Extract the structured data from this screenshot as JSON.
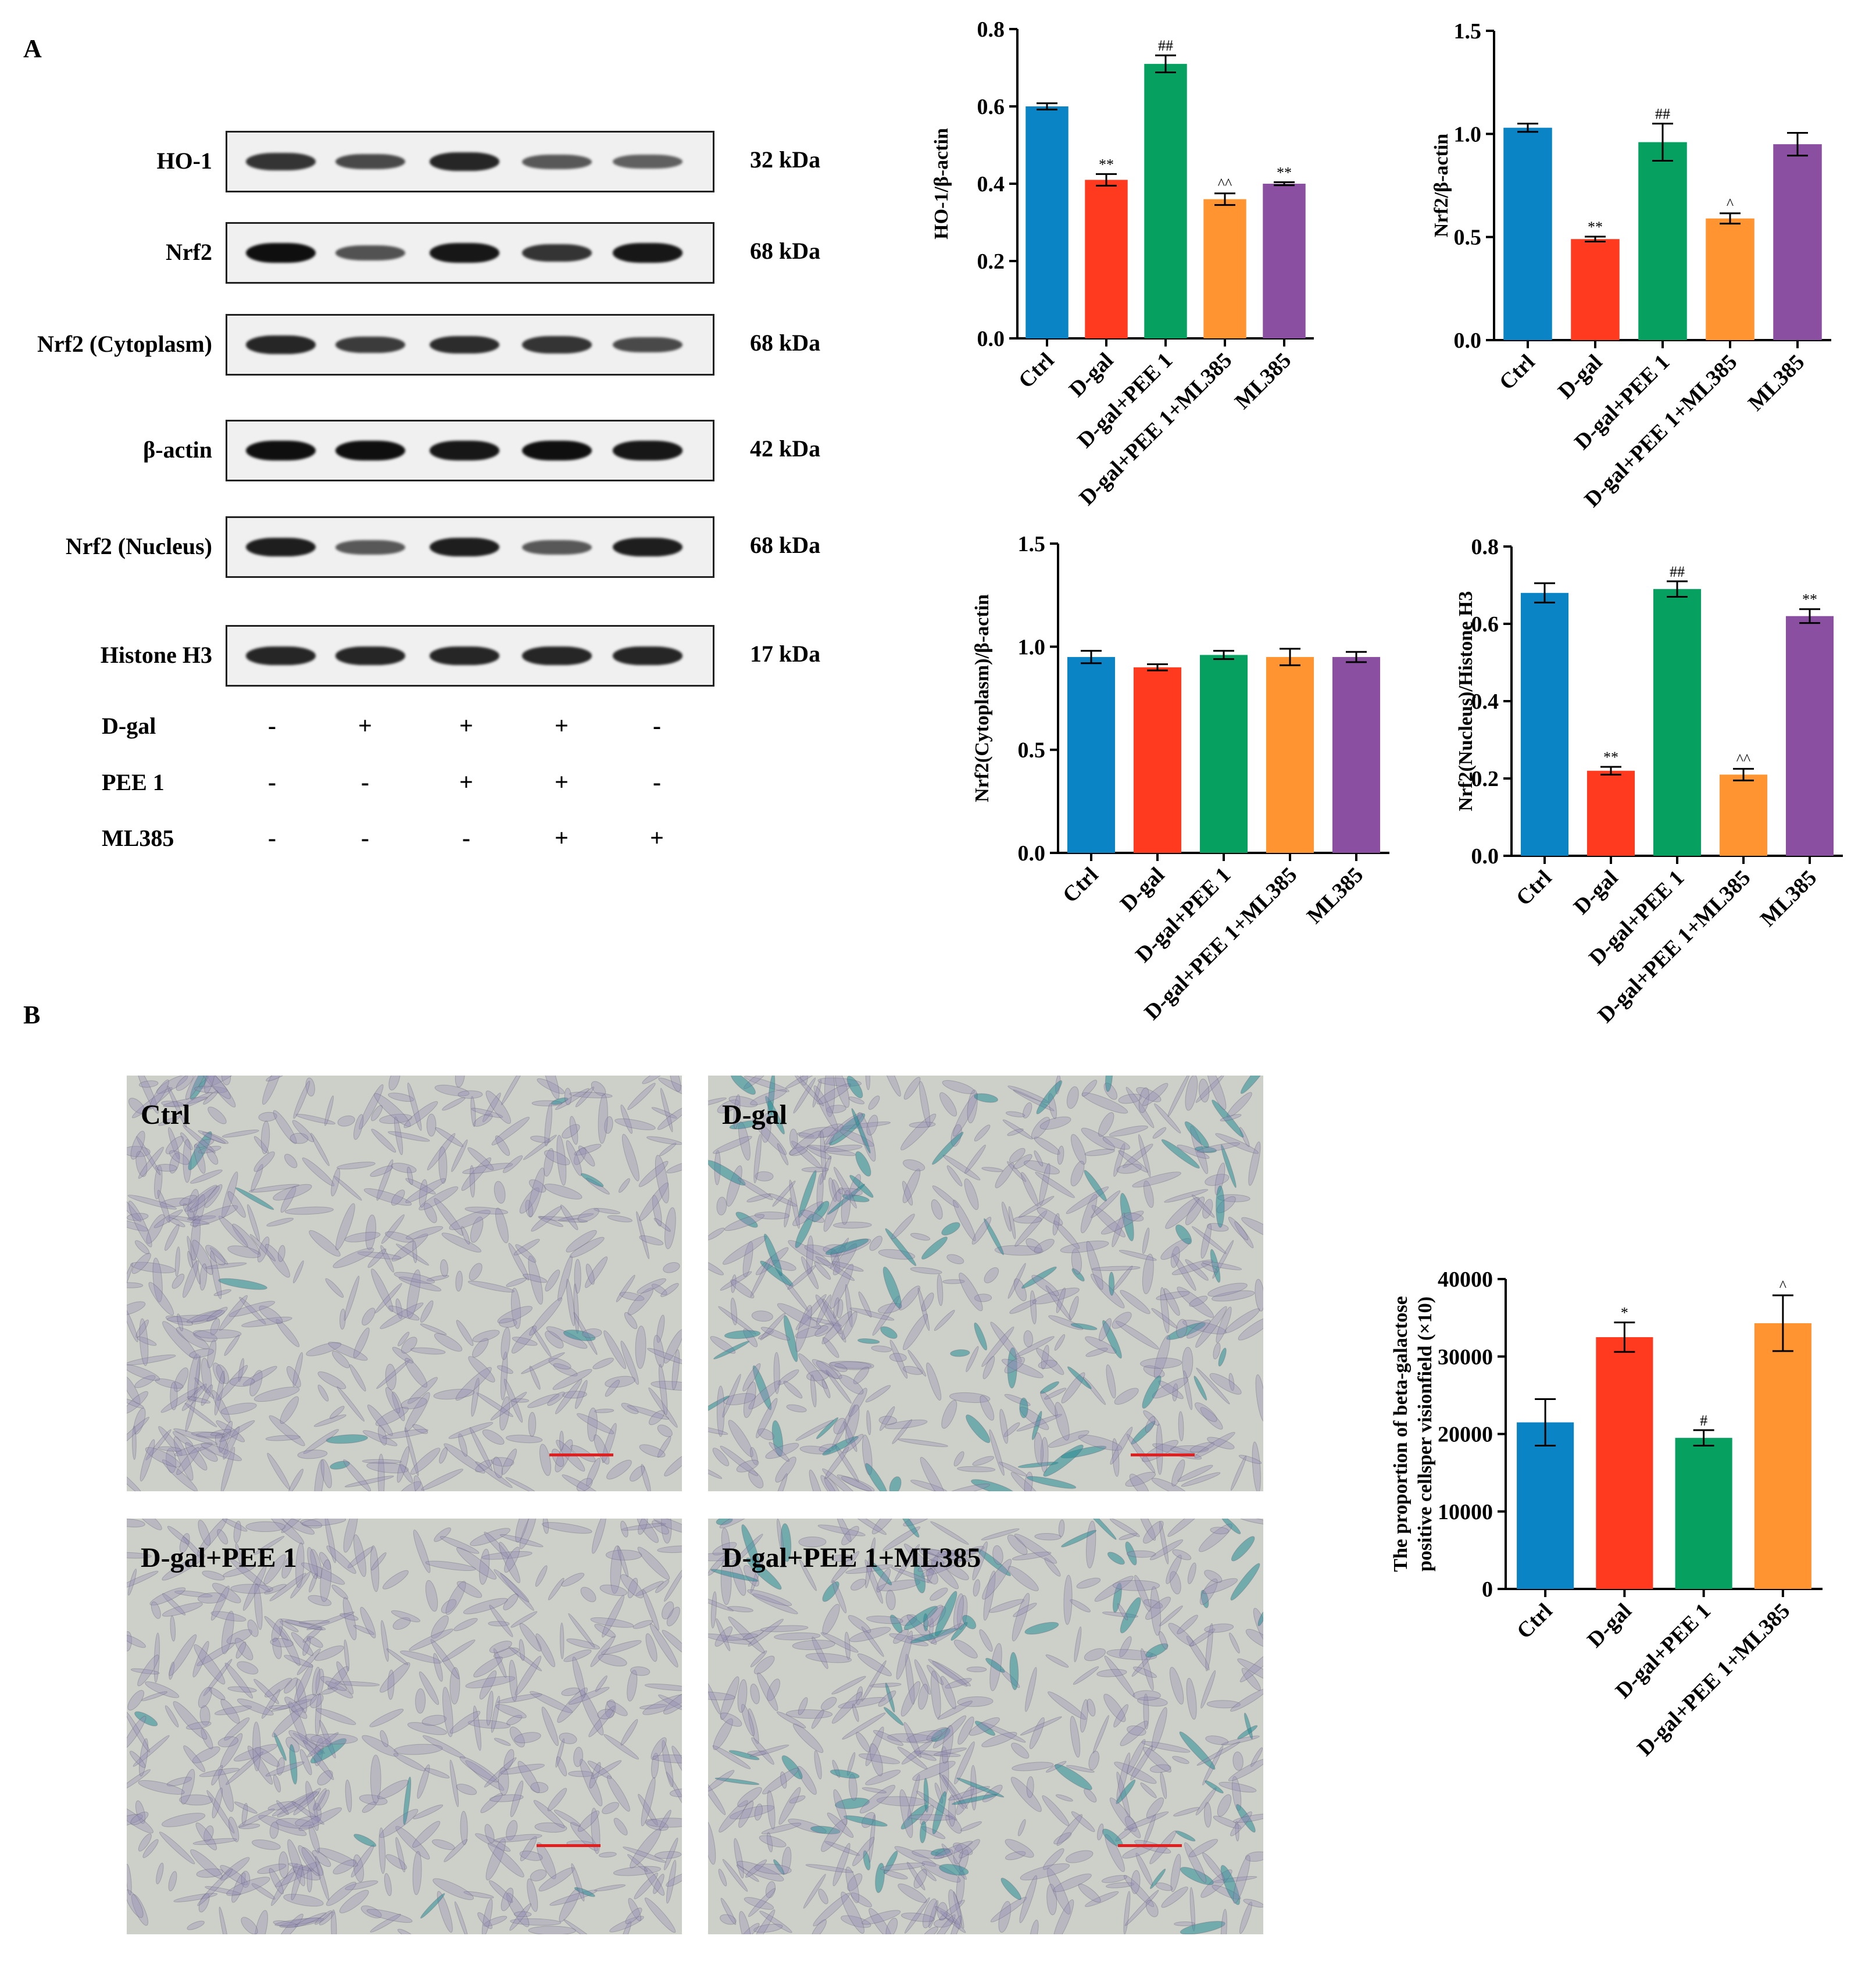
{
  "panelA": {
    "letter": "A",
    "blots": [
      {
        "label": "HO-1",
        "kda": "32 kDa",
        "intensity": [
          0.75,
          0.6,
          0.85,
          0.5,
          0.45
        ]
      },
      {
        "label": "Nrf2",
        "kda": "68 kDa",
        "intensity": [
          1.0,
          0.55,
          0.95,
          0.75,
          0.95
        ]
      },
      {
        "label": "Nrf2 (Cytoplasm)",
        "kda": "68 kDa",
        "intensity": [
          0.85,
          0.7,
          0.8,
          0.75,
          0.6
        ]
      },
      {
        "label": "β-actin",
        "kda": "42 kDa",
        "intensity": [
          1.0,
          1.0,
          0.95,
          1.0,
          0.95
        ]
      },
      {
        "label": "Nrf2 (Nucleus)",
        "kda": "68 kDa",
        "intensity": [
          0.9,
          0.5,
          0.9,
          0.5,
          0.9
        ]
      },
      {
        "label": "Histone H3",
        "kda": "17 kDa",
        "intensity": [
          0.85,
          0.85,
          0.85,
          0.85,
          0.85
        ]
      }
    ],
    "treatments": [
      {
        "label": "D-gal",
        "signs": [
          "-",
          "+",
          "+",
          "+",
          "-"
        ]
      },
      {
        "label": "PEE 1",
        "signs": [
          "-",
          "-",
          "+",
          "+",
          "-"
        ]
      },
      {
        "label": "ML385",
        "signs": [
          "-",
          "-",
          "-",
          "+",
          "+"
        ]
      }
    ]
  },
  "panelB": {
    "letter": "B",
    "images": [
      {
        "label": "Ctrl",
        "stain": 0.05
      },
      {
        "label": "D-gal",
        "stain": 0.5
      },
      {
        "label": "D-gal+PEE 1",
        "stain": 0.05
      },
      {
        "label": "D-gal+PEE 1+ML385",
        "stain": 0.55
      }
    ]
  },
  "chart_data": [
    {
      "type": "bar",
      "categories": [
        "Ctrl",
        "D-gal",
        "D-gal+PEE 1",
        "D-gal+PEE 1+ML385",
        "ML385"
      ],
      "values": [
        0.6,
        0.41,
        0.71,
        0.36,
        0.4
      ],
      "errors": [
        0.008,
        0.015,
        0.022,
        0.015,
        0.004
      ],
      "annotations": [
        "",
        "**",
        "##",
        "^^",
        "**"
      ],
      "ylabel": "HO-1/β-actin",
      "ylim": [
        0,
        0.8
      ],
      "yticks": [
        "0.0",
        "0.2",
        "0.4",
        "0.6",
        "0.8"
      ],
      "colors": [
        "#0b84c6",
        "#ff3a1f",
        "#06a060",
        "#ff9430",
        "#8a4fa0"
      ]
    },
    {
      "type": "bar",
      "categories": [
        "Ctrl",
        "D-gal",
        "D-gal+PEE 1",
        "D-gal+PEE 1+ML385",
        "ML385"
      ],
      "values": [
        1.03,
        0.49,
        0.96,
        0.59,
        0.95
      ],
      "errors": [
        0.02,
        0.012,
        0.09,
        0.025,
        0.055
      ],
      "annotations": [
        "",
        "**",
        "##",
        "^",
        ""
      ],
      "ylabel": "Nrf2/β-actin",
      "ylim": [
        0,
        1.5
      ],
      "yticks": [
        "0.0",
        "0.5",
        "1.0",
        "1.5"
      ],
      "colors": [
        "#0b84c6",
        "#ff3a1f",
        "#06a060",
        "#ff9430",
        "#8a4fa0"
      ]
    },
    {
      "type": "bar",
      "categories": [
        "Ctrl",
        "D-gal",
        "D-gal+PEE 1",
        "D-gal+PEE 1+ML385",
        "ML385"
      ],
      "values": [
        0.95,
        0.9,
        0.96,
        0.95,
        0.95
      ],
      "errors": [
        0.03,
        0.015,
        0.02,
        0.04,
        0.025
      ],
      "annotations": [
        "",
        "",
        "",
        "",
        ""
      ],
      "ylabel": "Nrf2(Cytoplasm)/β-actin",
      "ylim": [
        0,
        1.5
      ],
      "yticks": [
        "0.0",
        "0.5",
        "1.0",
        "1.5"
      ],
      "colors": [
        "#0b84c6",
        "#ff3a1f",
        "#06a060",
        "#ff9430",
        "#8a4fa0"
      ]
    },
    {
      "type": "bar",
      "categories": [
        "Ctrl",
        "D-gal",
        "D-gal+PEE 1",
        "D-gal+PEE 1+ML385",
        "ML385"
      ],
      "values": [
        0.68,
        0.22,
        0.69,
        0.21,
        0.62
      ],
      "errors": [
        0.025,
        0.01,
        0.02,
        0.015,
        0.018
      ],
      "annotations": [
        "",
        "**",
        "##",
        "^^",
        "**"
      ],
      "ylabel": "Nrf2(Nucleus)/Histone H3",
      "ylim": [
        0,
        0.8
      ],
      "yticks": [
        "0.0",
        "0.2",
        "0.4",
        "0.6",
        "0.8"
      ],
      "colors": [
        "#0b84c6",
        "#ff3a1f",
        "#06a060",
        "#ff9430",
        "#8a4fa0"
      ]
    },
    {
      "type": "bar",
      "categories": [
        "Ctrl",
        "D-gal",
        "D-gal+PEE 1",
        "D-gal+PEE 1+ML385"
      ],
      "values": [
        21500,
        32500,
        19500,
        34300
      ],
      "errors": [
        3000,
        1900,
        1000,
        3600
      ],
      "annotations": [
        "",
        "*",
        "#",
        "^"
      ],
      "ylabel": "The proportion of beta-galactose positive cellsper visionfield (×10)",
      "ylim": [
        0,
        40000
      ],
      "yticks": [
        "0",
        "10000",
        "20000",
        "30000",
        "40000"
      ],
      "colors": [
        "#0b84c6",
        "#ff3a1f",
        "#06a060",
        "#ff9430"
      ]
    }
  ]
}
